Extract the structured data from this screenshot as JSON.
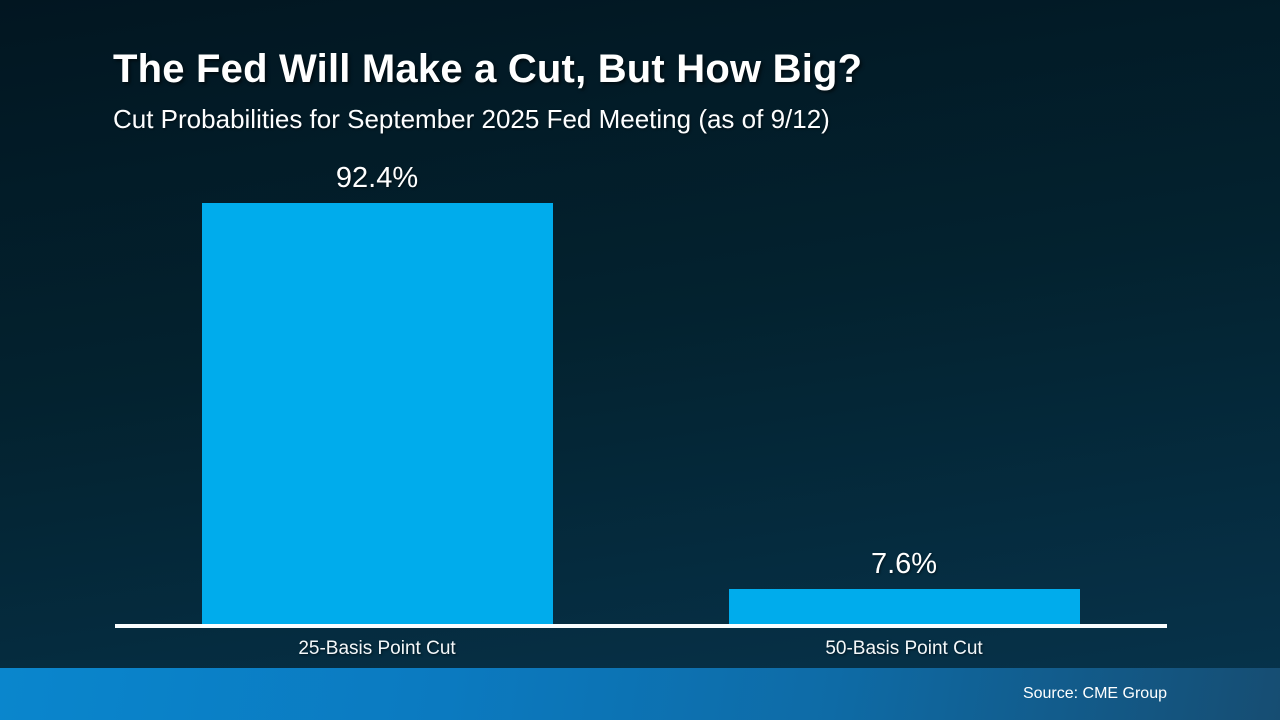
{
  "header": {
    "title": "The Fed Will Make a Cut, But How Big?",
    "subtitle": "Cut Probabilities for September 2025 Fed Meeting (as of 9/12)"
  },
  "chart_data": {
    "type": "bar",
    "categories": [
      "25-Basis Point Cut",
      "50-Basis Point Cut"
    ],
    "values": [
      92.4,
      7.6
    ],
    "value_labels": [
      "92.4%",
      "7.6%"
    ],
    "title": "The Fed Will Make a Cut, But How Big?",
    "subtitle": "Cut Probabilities for September 2025 Fed Meeting (as of 9/12)",
    "xlabel": "",
    "ylabel": "",
    "ylim": [
      0,
      100
    ],
    "grid": false,
    "legend": false,
    "bar_color": "#00ACEC",
    "axis_line_color": "#FFFFFF"
  },
  "footer": {
    "source": "Source: CME Group"
  },
  "colors": {
    "background_top": "#021621",
    "background_bottom": "#07344D",
    "bar": "#00ACEC",
    "axis_line": "#FFFFFF",
    "footer_gradient_left": "#0A86CD",
    "footer_gradient_right": "#164D72",
    "text": "#FFFFFF"
  }
}
